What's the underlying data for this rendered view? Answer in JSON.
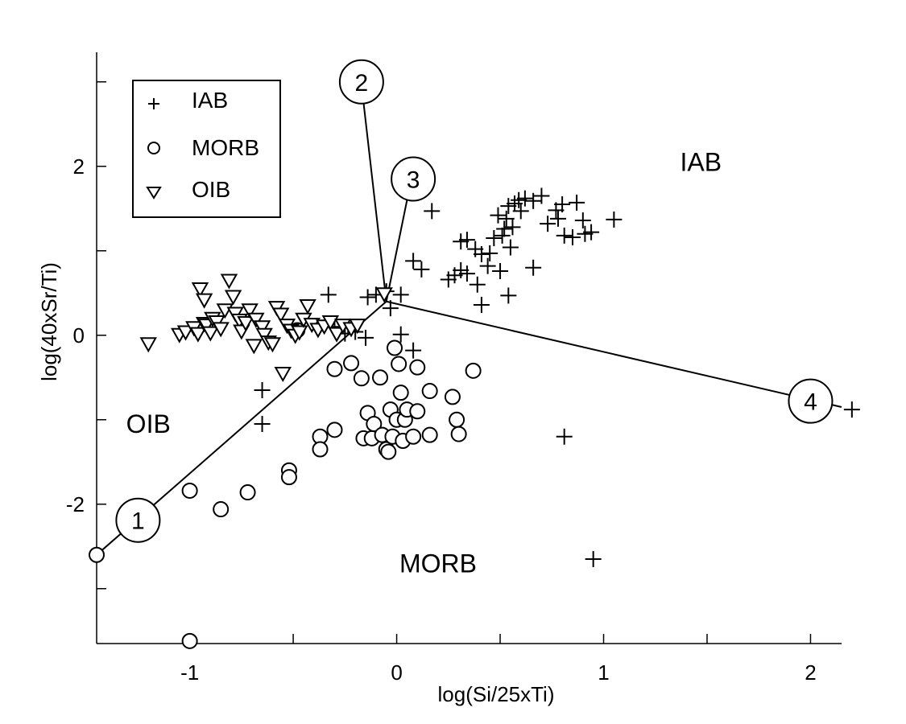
{
  "chart_data": {
    "type": "scatter",
    "title": "",
    "xlabel": "log(Si/25xTi)",
    "ylabel": "log(40xSr/Ti)",
    "xlim": [
      -1.45,
      2.15
    ],
    "ylim": [
      -3.65,
      3.35
    ],
    "x_ticks": [
      -1,
      0,
      1,
      2
    ],
    "x_tick_labels": [
      "-1",
      "0",
      "1",
      "2"
    ],
    "y_ticks": [
      -2,
      0,
      2
    ],
    "y_tick_labels": [
      "-2",
      "0",
      "2"
    ],
    "grid": false,
    "legend_position": "top-left",
    "legend": [
      {
        "series": "IAB",
        "marker": "plus",
        "label": "IAB"
      },
      {
        "series": "MORB",
        "marker": "circle",
        "label": "MORB"
      },
      {
        "series": "OIB",
        "marker": "triangle-down",
        "label": "OIB"
      }
    ],
    "region_labels": [
      {
        "text": "IAB",
        "x": 1.47,
        "y": 2.05
      },
      {
        "text": "OIB",
        "x": -1.2,
        "y": -1.05
      },
      {
        "text": "MORB",
        "x": 0.2,
        "y": -2.7
      }
    ],
    "boundary_lines": [
      {
        "from": [
          -1.45,
          -2.6
        ],
        "to": [
          -0.05,
          0.4
        ]
      },
      {
        "from": [
          -0.16,
          2.75
        ],
        "to": [
          -0.05,
          0.4
        ]
      },
      {
        "from": [
          0.05,
          1.6
        ],
        "to": [
          -0.05,
          0.4
        ]
      },
      {
        "from": [
          -0.05,
          0.4
        ],
        "to": [
          2.15,
          -0.85
        ]
      }
    ],
    "numbered_labels": [
      {
        "text": "1",
        "x": -1.25,
        "y": -2.19
      },
      {
        "text": "2",
        "x": -0.17,
        "y": 3.0
      },
      {
        "text": "3",
        "x": 0.08,
        "y": 1.85
      },
      {
        "text": "4",
        "x": 2.0,
        "y": -0.78
      }
    ],
    "series": [
      {
        "name": "IAB",
        "marker": "plus",
        "points": [
          [
            -0.33,
            0.48
          ],
          [
            -0.3,
            0.1
          ],
          [
            -0.25,
            0.02
          ],
          [
            -0.2,
            0.04
          ],
          [
            -0.15,
            -0.03
          ],
          [
            -0.14,
            0.45
          ],
          [
            -0.1,
            0.48
          ],
          [
            -0.05,
            0.52
          ],
          [
            -0.03,
            0.32
          ],
          [
            0.02,
            0.48
          ],
          [
            0.02,
            0.01
          ],
          [
            0.08,
            -0.18
          ],
          [
            0.08,
            0.88
          ],
          [
            0.12,
            0.78
          ],
          [
            0.17,
            1.47
          ],
          [
            0.25,
            0.66
          ],
          [
            0.28,
            0.71
          ],
          [
            0.31,
            0.77
          ],
          [
            0.31,
            1.11
          ],
          [
            0.34,
            1.13
          ],
          [
            0.34,
            0.73
          ],
          [
            0.38,
            1.02
          ],
          [
            0.41,
            0.96
          ],
          [
            0.45,
            0.97
          ],
          [
            0.47,
            1.15
          ],
          [
            0.49,
            1.42
          ],
          [
            0.51,
            1.18
          ],
          [
            0.52,
            1.26
          ],
          [
            0.53,
            1.38
          ],
          [
            0.54,
            1.53
          ],
          [
            0.55,
            1.04
          ],
          [
            0.56,
            1.28
          ],
          [
            0.57,
            1.56
          ],
          [
            0.59,
            1.6
          ],
          [
            0.6,
            1.47
          ],
          [
            0.62,
            1.62
          ],
          [
            0.66,
            1.59
          ],
          [
            0.7,
            1.65
          ],
          [
            0.73,
            1.32
          ],
          [
            0.77,
            1.48
          ],
          [
            0.78,
            1.38
          ],
          [
            0.8,
            1.55
          ],
          [
            0.81,
            1.18
          ],
          [
            0.85,
            1.16
          ],
          [
            0.87,
            1.57
          ],
          [
            0.9,
            1.36
          ],
          [
            0.91,
            1.2
          ],
          [
            0.94,
            1.22
          ],
          [
            1.05,
            1.37
          ],
          [
            0.66,
            0.8
          ],
          [
            0.54,
            0.47
          ],
          [
            0.44,
            0.82
          ],
          [
            0.39,
            0.6
          ],
          [
            0.5,
            0.76
          ],
          [
            0.41,
            0.36
          ],
          [
            -0.65,
            -0.65
          ],
          [
            -0.65,
            -1.05
          ],
          [
            0.81,
            -1.2
          ],
          [
            0.95,
            -2.65
          ],
          [
            2.2,
            -0.88
          ]
        ]
      },
      {
        "name": "MORB",
        "marker": "circle",
        "points": [
          [
            -1.45,
            -2.6
          ],
          [
            -1.0,
            -1.84
          ],
          [
            -0.85,
            -2.06
          ],
          [
            -0.72,
            -1.86
          ],
          [
            -0.52,
            -1.6
          ],
          [
            -0.52,
            -1.68
          ],
          [
            -0.37,
            -1.2
          ],
          [
            -0.37,
            -1.35
          ],
          [
            -0.3,
            -1.12
          ],
          [
            -0.3,
            -0.4
          ],
          [
            -0.22,
            -0.33
          ],
          [
            -0.17,
            -0.51
          ],
          [
            -0.16,
            -1.22
          ],
          [
            -0.14,
            -0.92
          ],
          [
            -0.12,
            -1.22
          ],
          [
            -0.11,
            -1.05
          ],
          [
            -0.08,
            -0.5
          ],
          [
            -0.07,
            -1.18
          ],
          [
            -0.05,
            -1.35
          ],
          [
            -0.04,
            -1.38
          ],
          [
            -0.03,
            -0.88
          ],
          [
            -0.02,
            -1.2
          ],
          [
            -0.01,
            -0.15
          ],
          [
            0.0,
            -1.0
          ],
          [
            0.01,
            -0.34
          ],
          [
            0.02,
            -0.68
          ],
          [
            0.03,
            -1.25
          ],
          [
            0.04,
            -1.0
          ],
          [
            0.05,
            -0.88
          ],
          [
            0.08,
            -1.2
          ],
          [
            0.1,
            -0.38
          ],
          [
            0.1,
            -0.9
          ],
          [
            0.16,
            -0.66
          ],
          [
            0.16,
            -1.18
          ],
          [
            0.27,
            -0.73
          ],
          [
            0.29,
            -1.0
          ],
          [
            0.3,
            -1.17
          ],
          [
            0.37,
            -0.42
          ],
          [
            -0.48,
            0.06
          ],
          [
            -1.0,
            -3.62
          ]
        ]
      },
      {
        "name": "OIB",
        "marker": "triangle-down",
        "points": [
          [
            -1.2,
            -0.1
          ],
          [
            -1.05,
            0.01
          ],
          [
            -1.02,
            0.04
          ],
          [
            -0.98,
            0.09
          ],
          [
            -0.96,
            0.02
          ],
          [
            -0.95,
            0.55
          ],
          [
            -0.93,
            0.42
          ],
          [
            -0.93,
            0.14
          ],
          [
            -0.92,
            0.12
          ],
          [
            -0.9,
            0.03
          ],
          [
            -0.89,
            0.2
          ],
          [
            -0.87,
            0.16
          ],
          [
            -0.85,
            0.08
          ],
          [
            -0.83,
            0.3
          ],
          [
            -0.81,
            0.65
          ],
          [
            -0.79,
            0.46
          ],
          [
            -0.78,
            0.26
          ],
          [
            -0.76,
            0.18
          ],
          [
            -0.75,
            0.05
          ],
          [
            -0.73,
            0.15
          ],
          [
            -0.71,
            0.3
          ],
          [
            -0.69,
            -0.12
          ],
          [
            -0.68,
            0.19
          ],
          [
            -0.65,
            0.1
          ],
          [
            -0.64,
            0.01
          ],
          [
            -0.62,
            -0.08
          ],
          [
            -0.6,
            -0.1
          ],
          [
            -0.58,
            0.33
          ],
          [
            -0.56,
            0.25
          ],
          [
            -0.55,
            -0.45
          ],
          [
            -0.53,
            0.12
          ],
          [
            -0.51,
            0.06
          ],
          [
            -0.49,
            0.0
          ],
          [
            -0.47,
            0.04
          ],
          [
            -0.45,
            0.19
          ],
          [
            -0.43,
            0.35
          ],
          [
            -0.41,
            0.13
          ],
          [
            -0.38,
            0.07
          ],
          [
            -0.35,
            0.11
          ],
          [
            -0.32,
            0.16
          ],
          [
            -0.29,
            0.02
          ],
          [
            -0.26,
            0.12
          ],
          [
            -0.22,
            0.08
          ],
          [
            -0.19,
            0.12
          ],
          [
            -0.06,
            0.49
          ]
        ]
      }
    ]
  },
  "legend": {
    "items": [
      {
        "symbol": "+",
        "label": "IAB"
      },
      {
        "symbol": "○",
        "label": "MORB"
      },
      {
        "symbol": "▽",
        "label": "OIB"
      }
    ]
  }
}
